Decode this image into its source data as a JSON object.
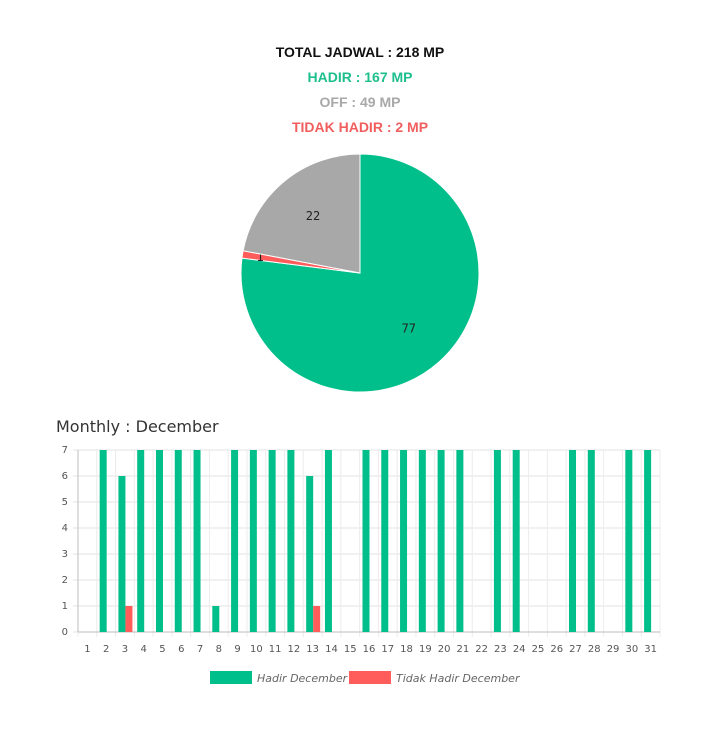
{
  "summary": {
    "total": "TOTAL JADWAL : 218 MP",
    "hadir": "HADIR : 167 MP",
    "off": "OFF : 49 MP",
    "tidak_hadir": "TIDAK HADIR : 2 MP"
  },
  "colors": {
    "hadir": "#00bf8a",
    "off": "#a8a8a8",
    "tidak_hadir": "#ff5c5c"
  },
  "chart_data": [
    {
      "type": "pie",
      "slices": [
        {
          "label": "77",
          "value": 77,
          "color": "#00bf8a"
        },
        {
          "label": "1",
          "value": 1,
          "color": "#ff5c5c"
        },
        {
          "label": "22",
          "value": 22,
          "color": "#a8a8a8"
        }
      ]
    },
    {
      "type": "bar",
      "title": "Monthly : December",
      "categories": [
        "1",
        "2",
        "3",
        "4",
        "5",
        "6",
        "7",
        "8",
        "9",
        "10",
        "11",
        "12",
        "13",
        "14",
        "15",
        "16",
        "17",
        "18",
        "19",
        "20",
        "21",
        "22",
        "23",
        "24",
        "25",
        "26",
        "27",
        "28",
        "29",
        "30",
        "31"
      ],
      "series": [
        {
          "name": "Hadir December",
          "color": "#00bf8a",
          "values": [
            0,
            7,
            6,
            7,
            7,
            7,
            7,
            1,
            7,
            7,
            7,
            7,
            6,
            7,
            0,
            7,
            7,
            7,
            7,
            7,
            7,
            0,
            7,
            7,
            0,
            0,
            7,
            7,
            0,
            7,
            7
          ]
        },
        {
          "name": "Tidak Hadir December",
          "color": "#ff5c5c",
          "values": [
            0,
            0,
            1,
            0,
            0,
            0,
            0,
            0,
            0,
            0,
            0,
            0,
            1,
            0,
            0,
            0,
            0,
            0,
            0,
            0,
            0,
            0,
            0,
            0,
            0,
            0,
            0,
            0,
            0,
            0,
            0
          ]
        }
      ],
      "ylim": [
        0,
        7
      ],
      "yticks": [
        0,
        1,
        2,
        3,
        4,
        5,
        6,
        7
      ],
      "grid": true,
      "legend": "bottom"
    }
  ]
}
